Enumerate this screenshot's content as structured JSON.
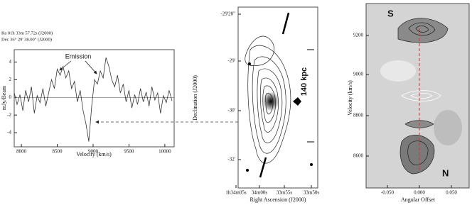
{
  "chart_data": [
    {
      "type": "line",
      "header": [
        "Ra  01h 33m 57.72s (J2000)",
        "Dec  36° 29' 38.00\" (J2000)"
      ],
      "annotation": "Emission",
      "xlabel": "Velocity (km/s)",
      "ylabel": "mJy/Beam",
      "x": [
        7900,
        7940,
        7980,
        8020,
        8060,
        8100,
        8140,
        8180,
        8220,
        8260,
        8300,
        8340,
        8380,
        8420,
        8460,
        8500,
        8540,
        8580,
        8620,
        8660,
        8700,
        8740,
        8780,
        8820,
        8860,
        8900,
        8940,
        8980,
        9020,
        9060,
        9100,
        9140,
        9180,
        9220,
        9260,
        9300,
        9340,
        9380,
        9420,
        9460,
        9500,
        9540,
        9580,
        9620,
        9660,
        9700,
        9740,
        9780,
        9820,
        9860,
        9900,
        9940,
        9980,
        10020,
        10060,
        10100
      ],
      "values": [
        0.5,
        -0.8,
        0.3,
        -1.5,
        0.8,
        -0.5,
        1.2,
        -1.8,
        0.2,
        -0.6,
        1.0,
        -1.0,
        0.5,
        2.0,
        1.0,
        3.2,
        2.5,
        3.5,
        2.2,
        3.0,
        1.0,
        1.8,
        -0.5,
        0.8,
        -1.5,
        -3.0,
        -5.0,
        -1.0,
        2.0,
        1.5,
        3.0,
        2.2,
        4.5,
        3.5,
        2.0,
        1.2,
        2.5,
        0.5,
        1.5,
        -0.5,
        0.8,
        -1.2,
        0.3,
        -0.8,
        1.0,
        -0.5,
        0.6,
        -1.0,
        1.2,
        -0.3,
        0.5,
        -1.8,
        0.2,
        -0.6,
        0.8,
        -0.4
      ],
      "color": "#333333",
      "hline": 0,
      "xlim": [
        7900,
        10130
      ],
      "xticks": [
        8000,
        8500,
        9000,
        9500,
        10000
      ],
      "ylim": [
        -5.6,
        5.4
      ],
      "yticks": [
        4,
        2,
        0,
        -2,
        -4
      ]
    },
    {
      "type": "contour",
      "xlabel": "Right Ascension (J2000)",
      "ylabel": "Declination (J2000)",
      "annotation": "140 kpc",
      "xtick_labels": [
        "1h34m05s",
        "34m00s",
        "33m55s",
        "33m50s"
      ],
      "ytick_labels": [
        "-29'20\"",
        "-29'",
        "-30'",
        "-32'"
      ]
    },
    {
      "type": "contour",
      "xlabel": "Angular Offset",
      "ylabel": "Velocity (km/s)",
      "annotations": [
        "S",
        "N"
      ],
      "xtick_labels": [
        "-0.050",
        "0.000",
        "0.050"
      ],
      "ytick_labels": [
        "9200",
        "9000",
        "8800",
        "8600"
      ]
    }
  ]
}
